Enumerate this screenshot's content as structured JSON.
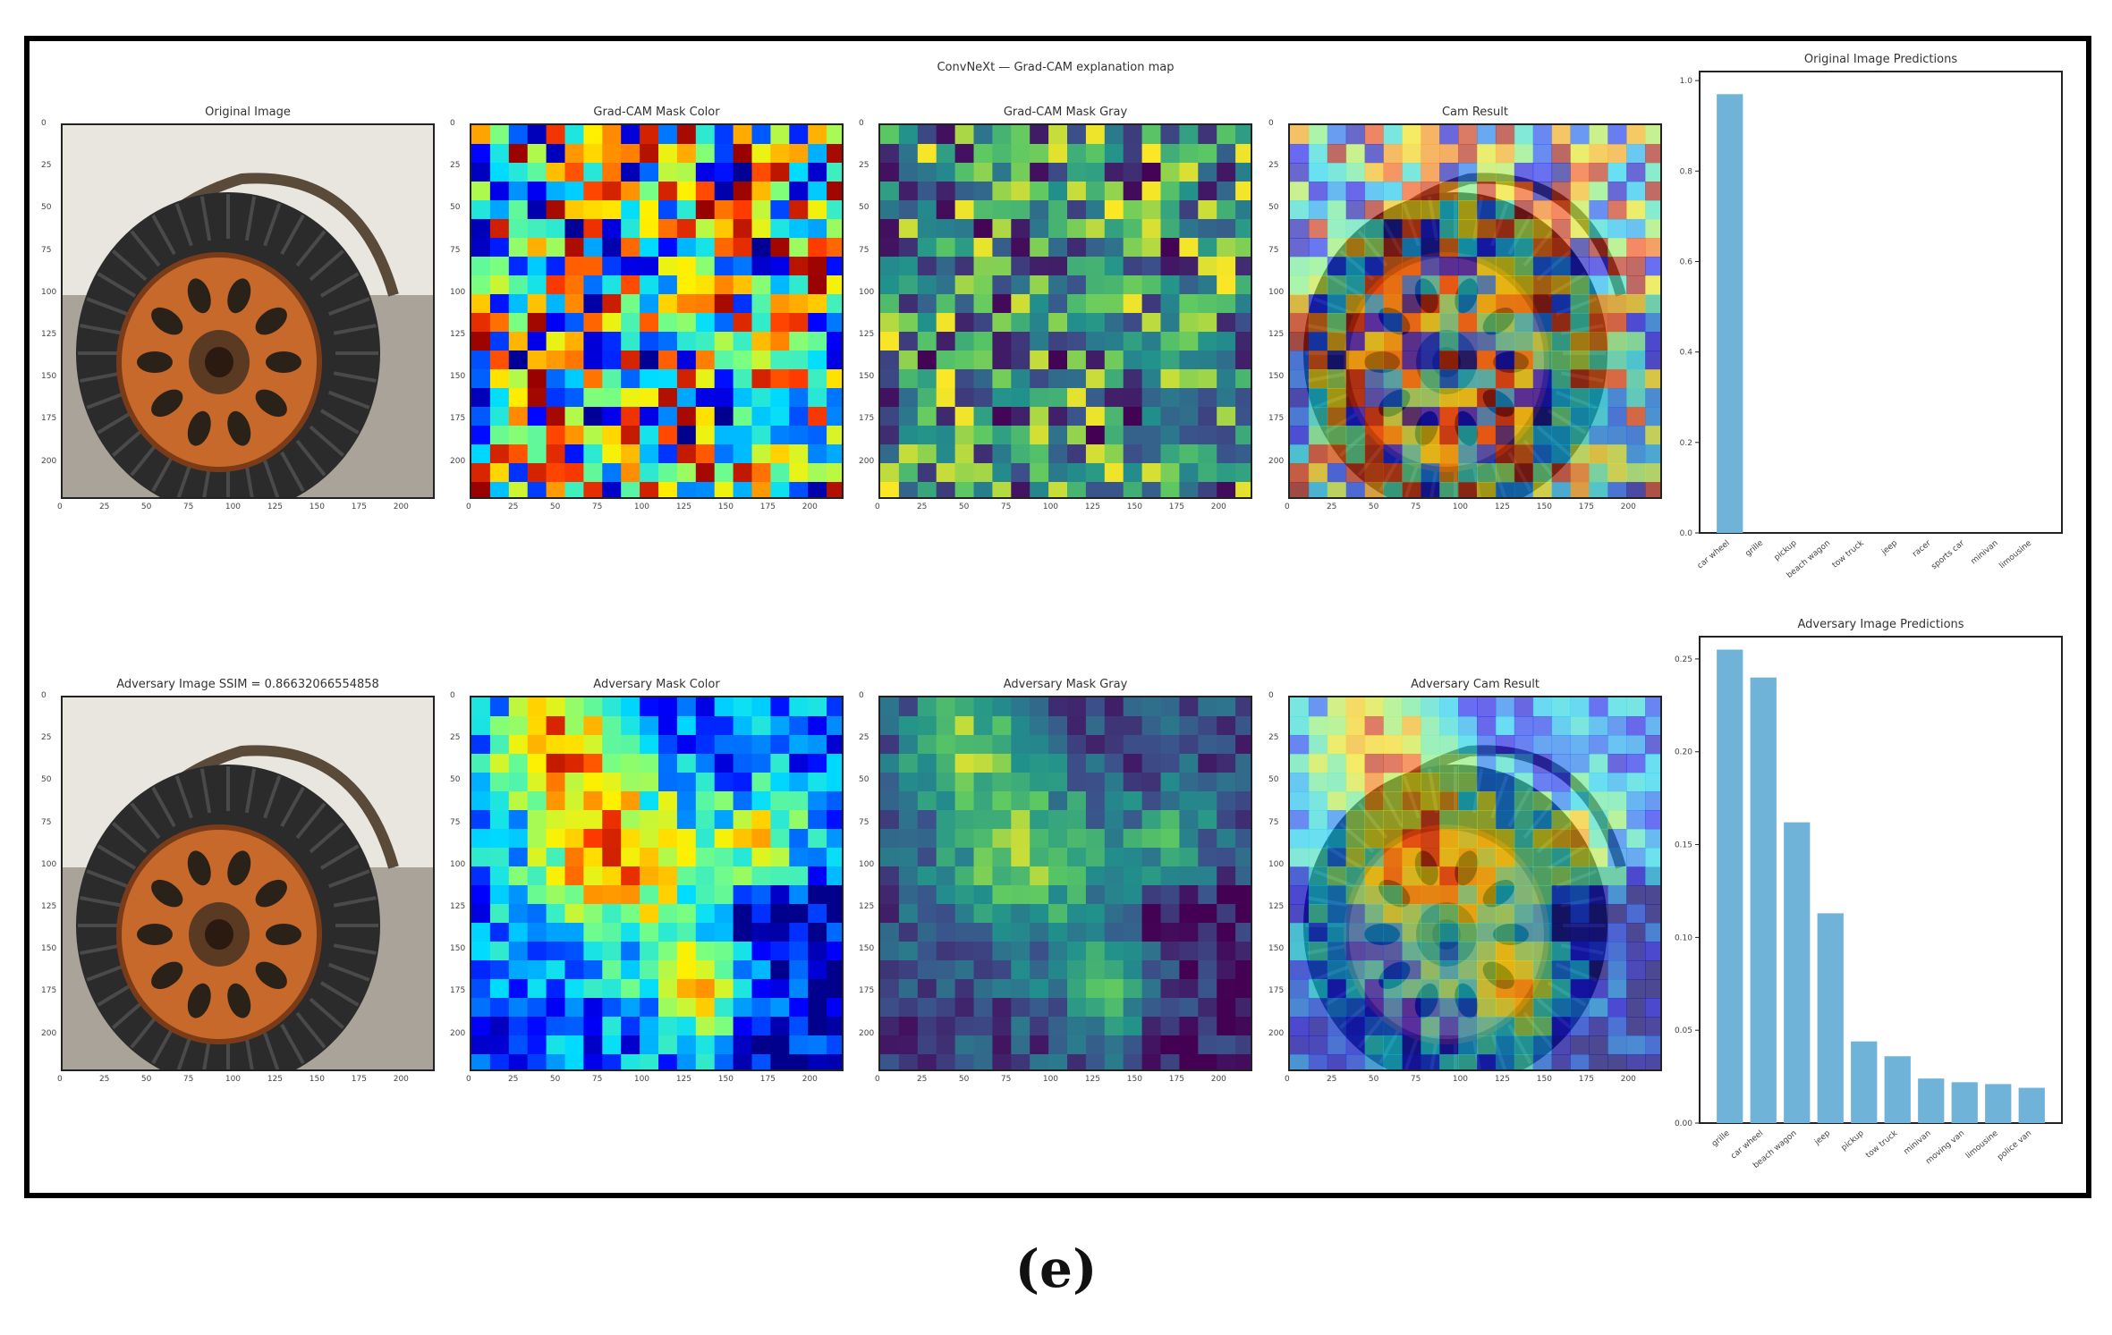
{
  "figure": {
    "suptitle": "ConvNeXt — Grad-CAM explanation map",
    "caption": "(e)",
    "tick_labels": [
      "0",
      "25",
      "50",
      "75",
      "100",
      "125",
      "150",
      "175",
      "200"
    ],
    "row1_titles": [
      "Original Image",
      "Grad-CAM Mask Color",
      "Grad-CAM Mask Gray",
      "Cam Result"
    ],
    "row2_titles": [
      "Adversary Image SSIM = 0.86632066554858",
      "Adversary Mask Color",
      "Adversary Mask Gray",
      "Adversary Cam Result"
    ]
  },
  "colors": {
    "bar": "#6fb3d9",
    "tire": "#2b2b2b",
    "rim": "#c8692c",
    "fender": "#e9e6e0"
  },
  "chart_data": [
    {
      "type": "bar",
      "title": "Original Image Predictions",
      "categories": [
        "car wheel",
        "grille",
        "pickup",
        "beach wagon",
        "tow truck",
        "jeep",
        "racer",
        "sports car",
        "minivan",
        "limousine"
      ],
      "values": [
        0.97,
        0.0,
        0.0,
        0.0,
        0.0,
        0.0,
        0.0,
        0.0,
        0.0,
        0.0
      ],
      "yticks": [
        "0.0",
        "0.2",
        "0.4",
        "0.6",
        "0.8",
        "1.0"
      ],
      "ylim": [
        0,
        1.02
      ]
    },
    {
      "type": "bar",
      "title": "Adversary Image Predictions",
      "categories": [
        "grille",
        "car wheel",
        "beach wagon",
        "jeep",
        "pickup",
        "tow truck",
        "minivan",
        "moving van",
        "limousine",
        "police van"
      ],
      "values": [
        0.255,
        0.24,
        0.162,
        0.113,
        0.044,
        0.036,
        0.024,
        0.022,
        0.021,
        0.019
      ],
      "yticks": [
        "0.00",
        "0.05",
        "0.10",
        "0.15",
        "0.20",
        "0.25"
      ],
      "ylim": [
        0,
        0.262
      ]
    }
  ]
}
